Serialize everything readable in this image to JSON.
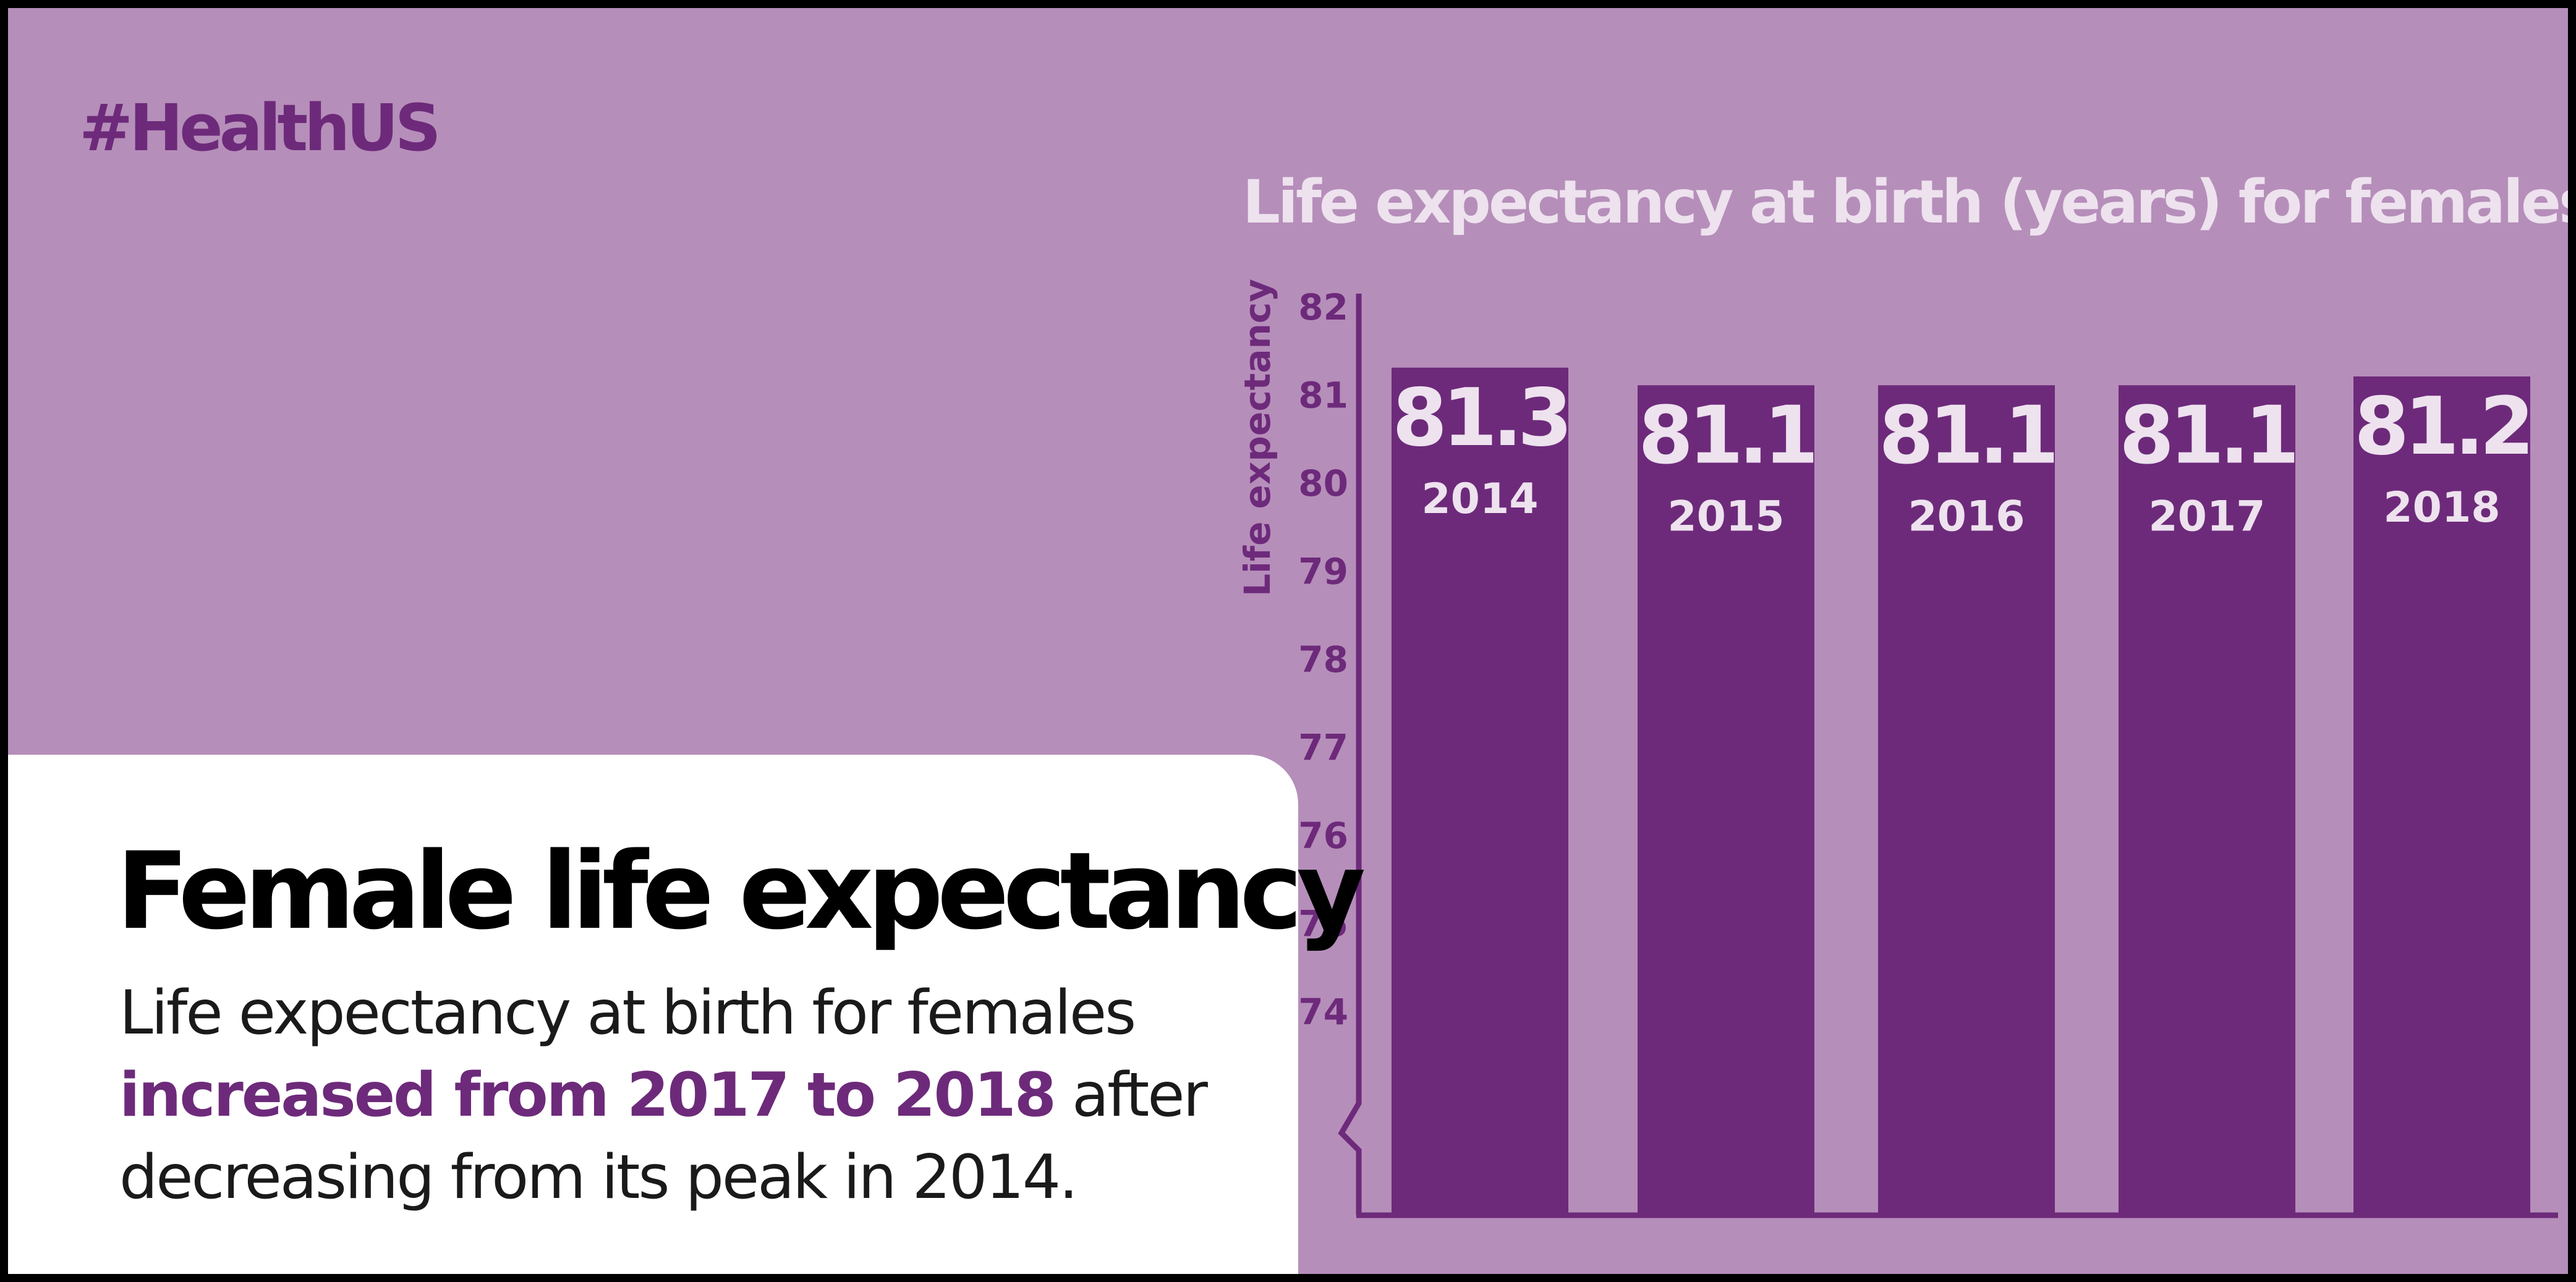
{
  "hashtag": "#HealthUS",
  "card": {
    "title": "Female life expectancy",
    "body_pre": "Life expectancy at birth for females ",
    "body_highlight": "increased from 2017 to 2018",
    "body_post": " after decreasing from its peak in 2014."
  },
  "colors": {
    "background": "#b68eba",
    "bar": "#6d2a7a",
    "axis": "#6d2a7a",
    "bar_label": "#ede2ee",
    "title": "#ede2ee",
    "card": "#ffffff",
    "highlight": "#6d2a7a"
  },
  "chart_data": {
    "type": "bar",
    "title": "Life expectancy at birth (years) for females",
    "xlabel": "",
    "ylabel": "Life expectancy",
    "categories": [
      "2014",
      "2015",
      "2016",
      "2017",
      "2018"
    ],
    "series": [
      {
        "values": [
          81.3,
          81.1,
          81.1,
          81.1,
          81.2
        ]
      }
    ],
    "data_labels": [
      "81.3",
      "81.1",
      "81.1",
      "81.1",
      "81.2"
    ],
    "yticks": [
      74,
      75,
      76,
      77,
      78,
      79,
      80,
      81,
      82
    ],
    "ylim": [
      73,
      82
    ],
    "axis_break": true,
    "grid": false,
    "legend": "none"
  }
}
